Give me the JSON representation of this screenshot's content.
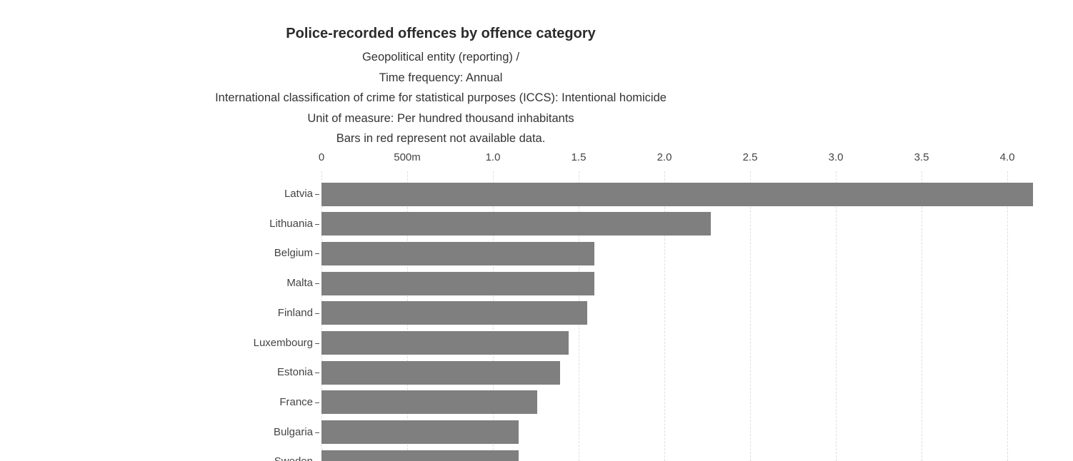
{
  "chart_data": {
    "type": "bar",
    "orientation": "horizontal",
    "title": "Police-recorded offences by offence category",
    "subtitle_lines": [
      "Geopolitical entity (reporting) /",
      "Time frequency: Annual",
      "International classification of crime for statistical purposes (ICCS): Intentional homicide",
      "Unit of measure: Per hundred thousand inhabitants",
      "Bars in red represent not available data."
    ],
    "categories": [
      "Latvia",
      "Lithuania",
      "Belgium",
      "Malta",
      "Finland",
      "Luxembourg",
      "Estonia",
      "France",
      "Bulgaria",
      "Sweden"
    ],
    "values": [
      4.15,
      2.27,
      1.59,
      1.59,
      1.55,
      1.44,
      1.39,
      1.26,
      1.15,
      1.15
    ],
    "na_flags": [
      false,
      false,
      false,
      false,
      false,
      false,
      false,
      false,
      false,
      false
    ],
    "x_ticks": [
      {
        "value": 0,
        "label": "0"
      },
      {
        "value": 0.5,
        "label": "500m"
      },
      {
        "value": 1.0,
        "label": "1.0"
      },
      {
        "value": 1.5,
        "label": "1.5"
      },
      {
        "value": 2.0,
        "label": "2.0"
      },
      {
        "value": 2.5,
        "label": "2.5"
      },
      {
        "value": 3.0,
        "label": "3.0"
      },
      {
        "value": 3.5,
        "label": "3.5"
      },
      {
        "value": 4.0,
        "label": "4.0"
      }
    ],
    "xlabel": "",
    "ylabel": "",
    "xlim": [
      0,
      4.2
    ],
    "grid": "dashed-vertical",
    "legend": "none",
    "bar_color": "#7f7f7f",
    "na_color": "#d62728",
    "background_color": "#ffffff"
  }
}
